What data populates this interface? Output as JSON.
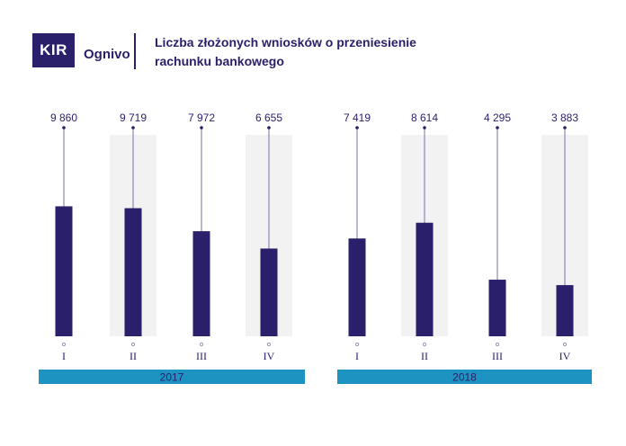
{
  "logo": {
    "brand": "KIR",
    "product": "Ognivo"
  },
  "title": "Liczba złożonych wniosków o przeniesienie rachunku bankowego",
  "colors": {
    "bar": "#2a1f6a",
    "stem": "#7a70aa",
    "shade": "#f2f2f2",
    "year_bar": "#1c93c0",
    "text": "#2a1f6a"
  },
  "chart_data": {
    "type": "bar",
    "title": "Liczba złożonych wniosków o przeniesienie rachunku bankowego",
    "xlabel": "",
    "ylabel": "",
    "grid": false,
    "groups": [
      {
        "year": "2017",
        "categories": [
          "I",
          "II",
          "III",
          "IV"
        ],
        "values": [
          9860,
          9719,
          7972,
          6655
        ],
        "labels": [
          "9 860",
          "9 719",
          "7 972",
          "6 655"
        ]
      },
      {
        "year": "2018",
        "categories": [
          "I",
          "II",
          "III",
          "IV"
        ],
        "values": [
          7419,
          8614,
          4295,
          3883
        ],
        "labels": [
          "7 419",
          "8 614",
          "4 295",
          "3 883"
        ]
      }
    ]
  }
}
